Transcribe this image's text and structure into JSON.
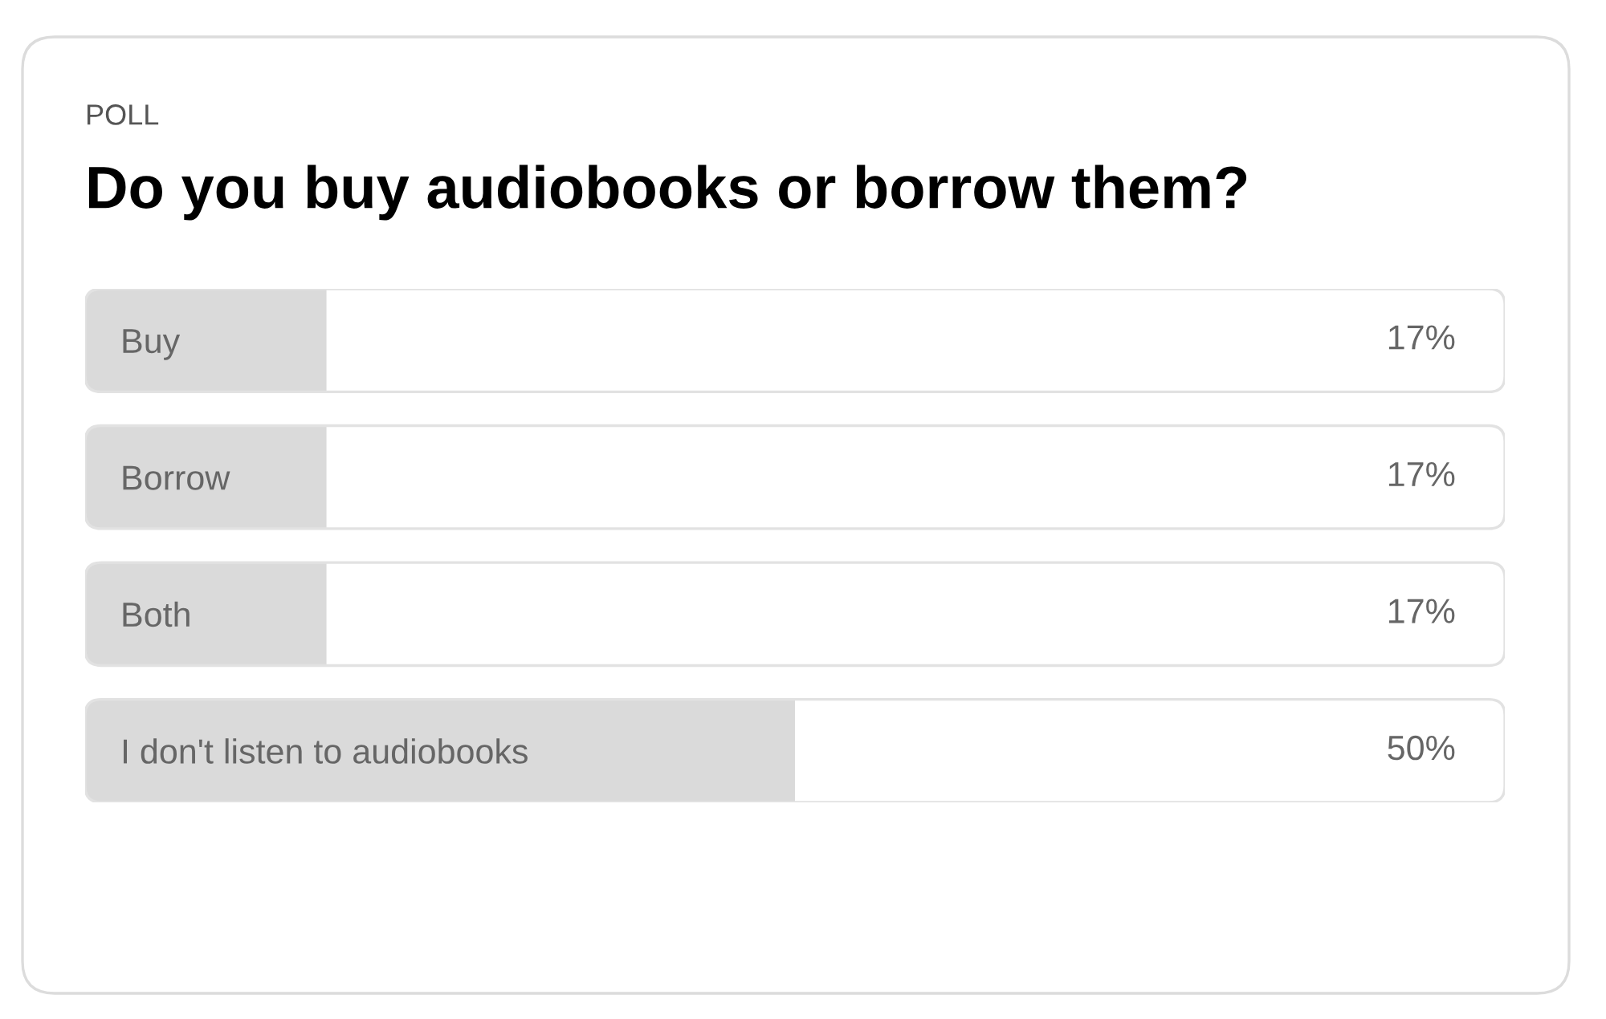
{
  "chart_data": {
    "type": "bar",
    "orientation": "horizontal",
    "title": "Do you buy audiobooks or borrow them?",
    "annotations": [
      "POLL"
    ],
    "categories": [
      "Buy",
      "Borrow",
      "Both",
      "I don't listen to audiobooks"
    ],
    "values": [
      17,
      17,
      17,
      50
    ],
    "value_labels": [
      "17%",
      "17%",
      "17%",
      "50%"
    ],
    "color": "#dadada",
    "xlim": [
      0,
      100
    ],
    "tick_labels": "y"
  }
}
